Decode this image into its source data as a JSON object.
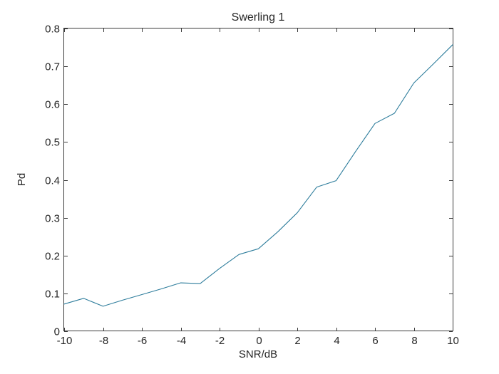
{
  "figure": {
    "background": "#ffffff",
    "axes_color": "#3b3b3b",
    "text_color": "#262626"
  },
  "chart_data": {
    "type": "line",
    "title": "Swerling 1",
    "xlabel": "SNR/dB",
    "ylabel": "Pd",
    "xlim": [
      -10,
      10
    ],
    "ylim": [
      0,
      0.8
    ],
    "xticks": [
      -10,
      -8,
      -6,
      -4,
      -2,
      0,
      2,
      4,
      6,
      8,
      10
    ],
    "yticks": [
      0,
      0.1,
      0.2,
      0.3,
      0.4,
      0.5,
      0.6,
      0.7,
      0.8
    ],
    "grid": false,
    "legend": "none",
    "box": true,
    "line_color": "#2e7d9c",
    "series": [
      {
        "name": "Pd",
        "x": [
          -10,
          -9,
          -8,
          -7,
          -6,
          -5,
          -4,
          -3,
          -2,
          -1,
          0,
          1,
          2,
          3,
          4,
          5,
          6,
          7,
          8,
          9,
          10
        ],
        "y": [
          0.072,
          0.087,
          0.066,
          0.082,
          0.097,
          0.112,
          0.128,
          0.126,
          0.166,
          0.203,
          0.218,
          0.263,
          0.313,
          0.381,
          0.398,
          0.475,
          0.549,
          0.576,
          0.656,
          0.706,
          0.757
        ]
      }
    ]
  }
}
